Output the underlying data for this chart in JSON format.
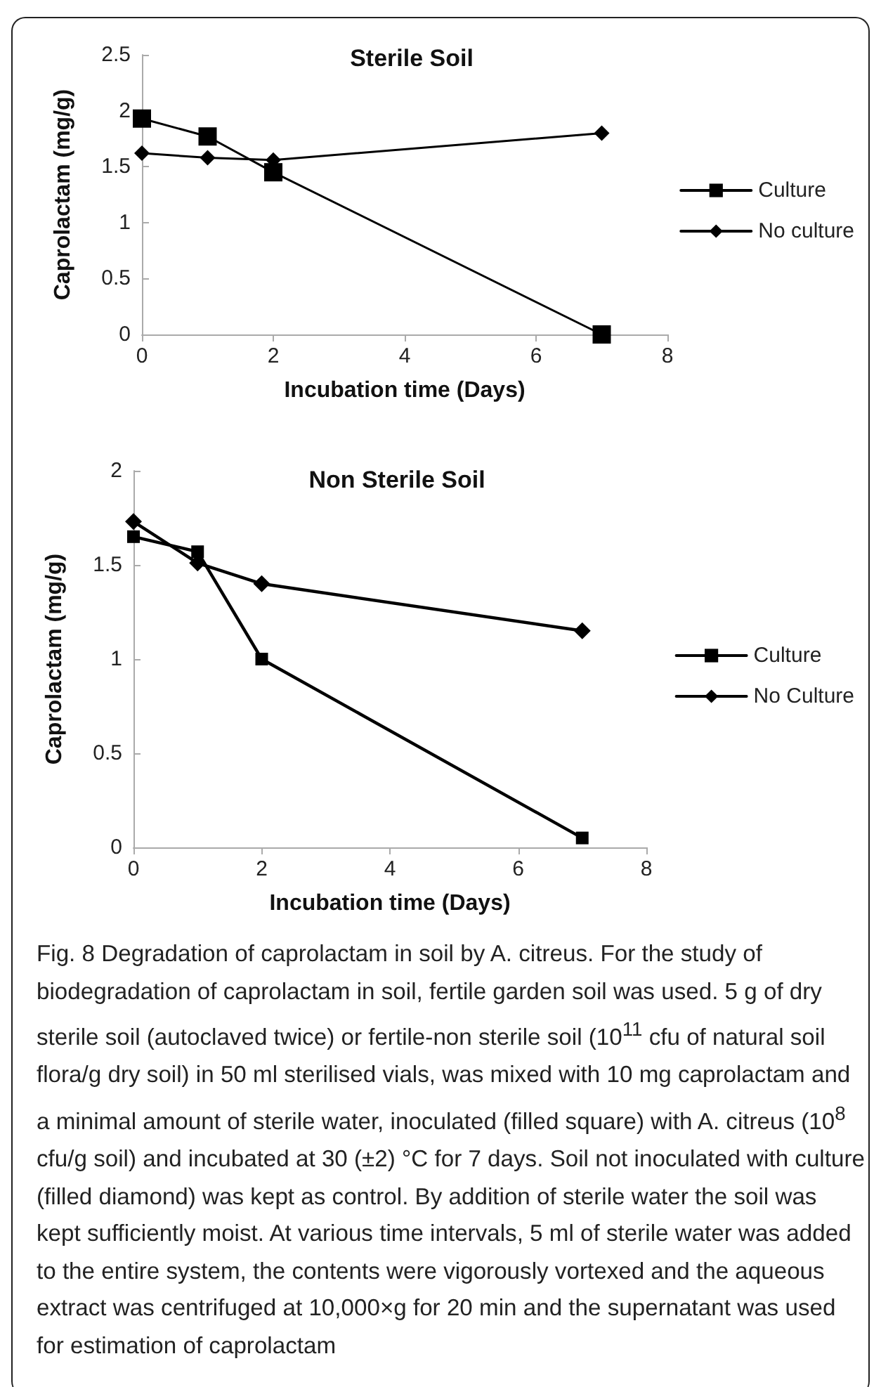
{
  "chart_data": [
    {
      "type": "line",
      "title": "Sterile Soil",
      "xlabel": "Incubation time (Days)",
      "ylabel": "Caprolactam (mg/g)",
      "x": [
        0,
        1,
        2,
        7
      ],
      "series": [
        {
          "name": "Culture",
          "color": "#000000",
          "marker": "square",
          "values": [
            1.93,
            1.77,
            1.45,
            0
          ]
        },
        {
          "name": "No culture",
          "color": "#000000",
          "marker": "diamond",
          "values": [
            1.62,
            1.58,
            1.56,
            1.8
          ]
        }
      ],
      "xlim": [
        0,
        8
      ],
      "xticks": [
        0,
        2,
        4,
        6,
        8
      ],
      "ylim": [
        0,
        2.5
      ],
      "yticks": [
        0,
        0.5,
        1,
        1.5,
        2,
        2.5
      ],
      "grid": false,
      "legend": "right"
    },
    {
      "type": "line",
      "title": "Non Sterile Soil",
      "xlabel": "Incubation time (Days)",
      "ylabel": "Caprolactam (mg/g)",
      "x": [
        0,
        1,
        2,
        7
      ],
      "series": [
        {
          "name": "Culture",
          "color": "#000000",
          "marker": "square",
          "values": [
            1.65,
            1.57,
            1.0,
            0.05
          ]
        },
        {
          "name": "No Culture",
          "color": "#000000",
          "marker": "diamond",
          "values": [
            1.73,
            1.51,
            1.4,
            1.15
          ]
        }
      ],
      "xlim": [
        0,
        8
      ],
      "xticks": [
        0,
        2,
        4,
        6,
        8
      ],
      "ylim": [
        0,
        2
      ],
      "yticks": [
        0,
        0.5,
        1,
        1.5,
        2
      ],
      "grid": false,
      "legend": "right",
      "annotations": [
        "Fig. 8  Degradation of caprolactam in soil by A. citreus. For the study of biodegradation of caprolactam in soil, fertile garden soil was used. 5 g of dry sterile soil (autoclaved twice) or fertile-non sterile soil (10$^{11}$ cfu of natural soil flora/g dry soil) in 50 ml sterilised vials, was mixed with 10 mg caprolactam and a minimal amount of sterile water, inoculated (filled square) with A. citreus (10$^{8}$ cfu/g soil) and incubated at 30 (±2) °C for 7 days. Soil not inoculated with culture (filled diamond) was kept as control. By addition of sterile water the soil was kept sufficiently moist. At various time intervals, 5 ml of sterile water was added to the entire system, the contents were vigorously vortexed and the aqueous extract was centrifuged at 10,000×g for 20 min and the supernatant was used for estimation of caprolactam"
      ]
    }
  ]
}
